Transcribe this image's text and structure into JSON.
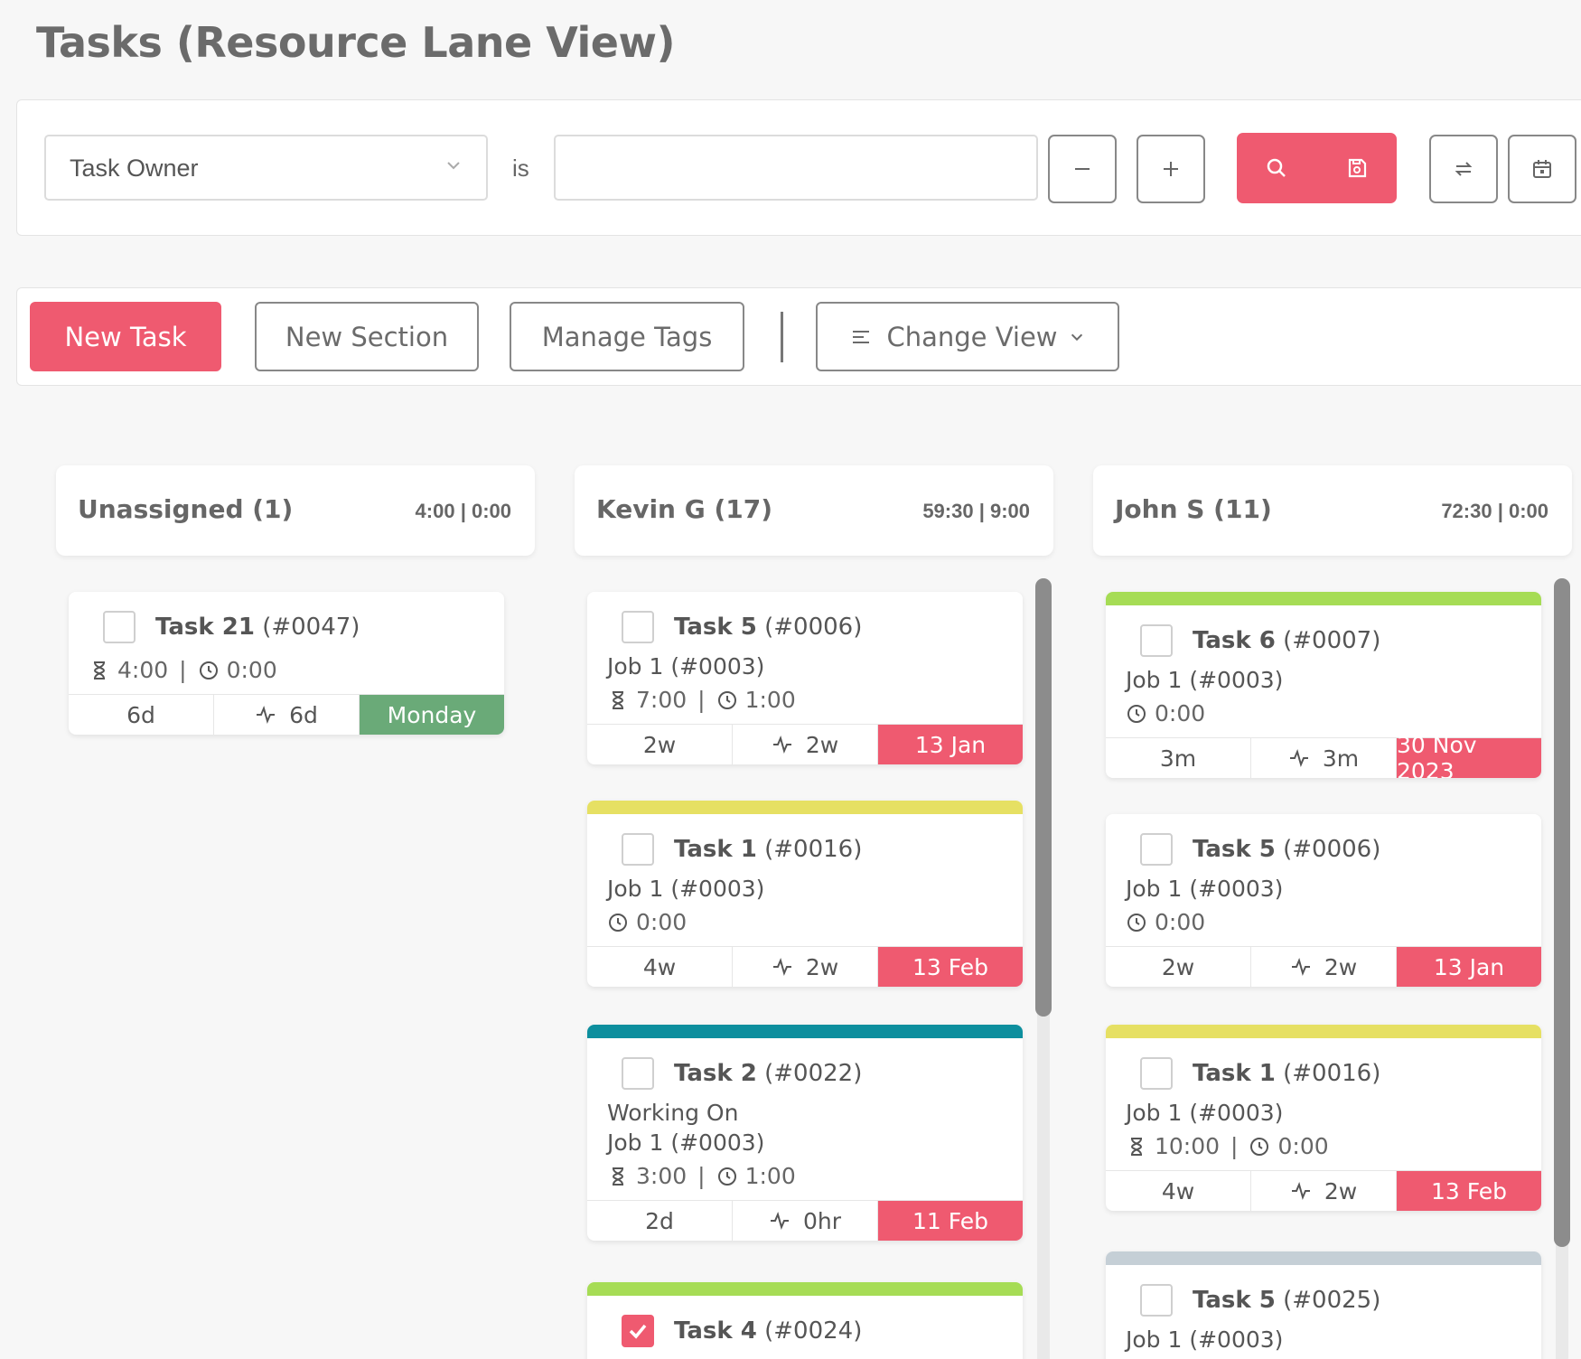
{
  "page": {
    "title": "Tasks (Resource Lane View)"
  },
  "filter": {
    "field": "Task Owner",
    "operator": "is",
    "value": "",
    "remove_icon": "minus-icon",
    "add_icon": "plus-icon",
    "search_icon": "search-icon",
    "save_icon": "save-icon",
    "refresh_icon": "refresh-icon",
    "calendar_icon": "calendar-icon"
  },
  "toolbar": {
    "new_task": "New Task",
    "new_section": "New Section",
    "manage_tags": "Manage Tags",
    "change_view": "Change View"
  },
  "colors": {
    "accent": "#ef5a70",
    "due_overdue": "#ef5a70",
    "due_upcoming": "#6aaa78",
    "tag_green": "#a6dc55",
    "tag_yellow": "#e6e063",
    "tag_teal": "#0d8f9e",
    "tag_grey": "#c5cfd6"
  },
  "lanes": [
    {
      "name": "Unassigned (1)",
      "hours": "4:00 | 0:00",
      "cards": [
        {
          "tag": "",
          "checked": false,
          "task": "Task 21",
          "id": "(#0047)",
          "status": "",
          "job": "",
          "est": "4:00",
          "logged": "0:00",
          "f1": "6d",
          "f2": "6d",
          "due": "Monday",
          "due_type": "green"
        }
      ]
    },
    {
      "name": "Kevin G (17)",
      "hours": "59:30 | 9:00",
      "cards": [
        {
          "tag": "",
          "checked": false,
          "task": "Task 5",
          "id": "(#0006)",
          "status": "",
          "job": "Job 1 (#0003)",
          "est": "7:00",
          "logged": "1:00",
          "f1": "2w",
          "f2": "2w",
          "due": "13 Jan",
          "due_type": "red"
        },
        {
          "tag": "yellow",
          "checked": false,
          "task": "Task 1",
          "id": "(#0016)",
          "status": "",
          "job": "Job 1 (#0003)",
          "est": "",
          "logged": "0:00",
          "f1": "4w",
          "f2": "2w",
          "due": "13 Feb",
          "due_type": "red"
        },
        {
          "tag": "teal",
          "checked": false,
          "task": "Task 2",
          "id": "(#0022)",
          "status": "Working On",
          "job": "Job 1 (#0003)",
          "est": "3:00",
          "logged": "1:00",
          "f1": "2d",
          "f2": "0hr",
          "due": "11 Feb",
          "due_type": "red"
        },
        {
          "tag": "green",
          "checked": true,
          "task": "Task 4",
          "id": "(#0024)",
          "status": "",
          "job": "",
          "est": "",
          "logged": "",
          "f1": "",
          "f2": "",
          "due": "",
          "due_type": ""
        }
      ]
    },
    {
      "name": "John S (11)",
      "hours": "72:30 | 0:00",
      "cards": [
        {
          "tag": "green",
          "checked": false,
          "task": "Task 6",
          "id": "(#0007)",
          "status": "",
          "job": "Job 1 (#0003)",
          "est": "",
          "logged": "0:00",
          "f1": "3m",
          "f2": "3m",
          "due": "30 Nov 2023",
          "due_type": "red"
        },
        {
          "tag": "",
          "checked": false,
          "task": "Task 5",
          "id": "(#0006)",
          "status": "",
          "job": "Job 1 (#0003)",
          "est": "",
          "logged": "0:00",
          "f1": "2w",
          "f2": "2w",
          "due": "13 Jan",
          "due_type": "red"
        },
        {
          "tag": "yellow",
          "checked": false,
          "task": "Task 1",
          "id": "(#0016)",
          "status": "",
          "job": "Job 1 (#0003)",
          "est": "10:00",
          "logged": "0:00",
          "f1": "4w",
          "f2": "2w",
          "due": "13 Feb",
          "due_type": "red"
        },
        {
          "tag": "grey",
          "checked": false,
          "task": "Task 5",
          "id": "(#0025)",
          "status": "",
          "job": "Job 1 (#0003)",
          "est": "",
          "logged": "",
          "f1": "",
          "f2": "",
          "due": "",
          "due_type": ""
        }
      ]
    }
  ]
}
